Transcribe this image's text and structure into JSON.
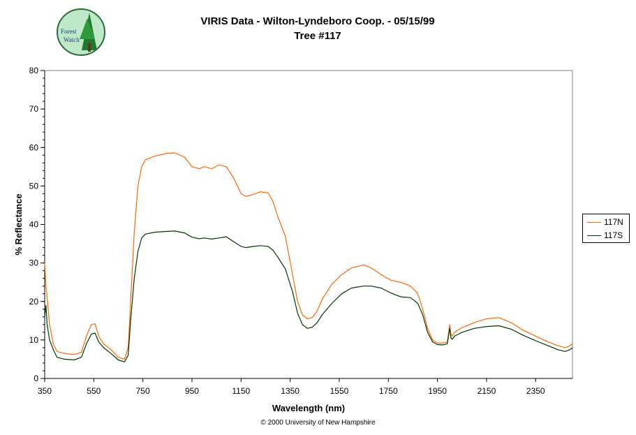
{
  "header": {
    "title": "VIRIS Data - Wilton-Lyndeboro Coop. - 05/15/99",
    "subtitle": "Tree #117"
  },
  "logo": {
    "text_line1": "Forest",
    "text_line2": "Watch"
  },
  "footer": {
    "copyright": "© 2000 University of New Hampshire"
  },
  "chart_data": {
    "type": "line",
    "title": "VIRIS Data - Wilton-Lyndeboro Coop. - 05/15/99",
    "subtitle": "Tree #117",
    "xlabel": "Wavelength (nm)",
    "ylabel": "% Reflectance",
    "xlim": [
      350,
      2500
    ],
    "ylim": [
      0,
      80
    ],
    "xticks": [
      350,
      550,
      750,
      950,
      1150,
      1350,
      1550,
      1750,
      1950,
      2150,
      2350
    ],
    "yticks": [
      0,
      10,
      20,
      30,
      40,
      50,
      60,
      70,
      80
    ],
    "grid": false,
    "legend_position": "right",
    "series": [
      {
        "name": "117N",
        "color": "#ff6600",
        "x": [
          350,
          355,
          360,
          370,
          385,
          400,
          430,
          470,
          500,
          520,
          540,
          555,
          570,
          590,
          620,
          650,
          675,
          690,
          700,
          715,
          730,
          745,
          760,
          800,
          850,
          880,
          920,
          950,
          980,
          1000,
          1030,
          1060,
          1090,
          1120,
          1150,
          1170,
          1200,
          1230,
          1260,
          1280,
          1300,
          1330,
          1360,
          1380,
          1400,
          1420,
          1440,
          1460,
          1480,
          1520,
          1560,
          1600,
          1650,
          1680,
          1720,
          1760,
          1800,
          1840,
          1870,
          1890,
          1910,
          1930,
          1950,
          1970,
          1990,
          2000,
          2005,
          2010,
          2020,
          2050,
          2100,
          2150,
          2200,
          2250,
          2300,
          2350,
          2400,
          2440,
          2470,
          2490,
          2500
        ],
        "values": [
          30,
          24,
          21,
          14,
          9,
          7,
          6.5,
          6.2,
          6.8,
          11,
          14,
          14.2,
          11,
          9,
          7.5,
          5.5,
          5,
          8,
          20,
          38,
          50,
          55,
          56.8,
          57.8,
          58.5,
          58.6,
          57.5,
          55,
          54.5,
          55,
          54.5,
          55.5,
          55,
          52,
          48,
          47.3,
          47.8,
          48.5,
          48.2,
          46,
          42,
          37,
          27,
          20,
          16.5,
          15.5,
          15.8,
          17.5,
          20.5,
          24.5,
          27,
          28.7,
          29.5,
          28.7,
          27,
          25.5,
          25,
          24,
          22,
          18,
          13,
          10,
          9.2,
          9.2,
          9.5,
          14,
          11.5,
          11,
          12,
          13.2,
          14.5,
          15.5,
          15.8,
          14.5,
          12.5,
          11,
          9.5,
          8.5,
          8,
          8.5,
          9
        ]
      },
      {
        "name": "117S",
        "color": "#003300",
        "x": [
          350,
          355,
          360,
          370,
          385,
          400,
          430,
          470,
          500,
          520,
          540,
          555,
          570,
          590,
          620,
          650,
          675,
          690,
          700,
          715,
          730,
          745,
          760,
          800,
          850,
          880,
          920,
          950,
          980,
          1000,
          1030,
          1060,
          1090,
          1120,
          1150,
          1170,
          1200,
          1230,
          1260,
          1280,
          1300,
          1330,
          1360,
          1380,
          1400,
          1420,
          1440,
          1460,
          1480,
          1520,
          1560,
          1600,
          1650,
          1680,
          1720,
          1760,
          1800,
          1840,
          1870,
          1890,
          1910,
          1930,
          1950,
          1970,
          1990,
          2000,
          2005,
          2010,
          2020,
          2050,
          2100,
          2150,
          2200,
          2250,
          2300,
          2350,
          2400,
          2440,
          2470,
          2490,
          2500
        ],
        "values": [
          16,
          19,
          14,
          10,
          7.5,
          5.5,
          5,
          4.8,
          5.5,
          9,
          11.5,
          11.8,
          9.5,
          8,
          6.5,
          4.8,
          4.3,
          6,
          15,
          26,
          33,
          36.5,
          37.5,
          38,
          38.2,
          38.3,
          37.8,
          36.7,
          36.3,
          36.5,
          36.2,
          36.5,
          36.8,
          35.5,
          34.3,
          34,
          34.3,
          34.5,
          34.3,
          33.3,
          31.5,
          28.5,
          22.5,
          17,
          14,
          13,
          13.3,
          14.5,
          16.5,
          19.5,
          22,
          23.5,
          24,
          24,
          23.5,
          22.2,
          21.2,
          21,
          19.5,
          16.5,
          12,
          9.5,
          8.8,
          8.7,
          9,
          13,
          10.5,
          10.2,
          11,
          12,
          13,
          13.5,
          13.7,
          12.8,
          11.2,
          9.8,
          8.5,
          7.5,
          7,
          7.5,
          8
        ]
      }
    ]
  }
}
